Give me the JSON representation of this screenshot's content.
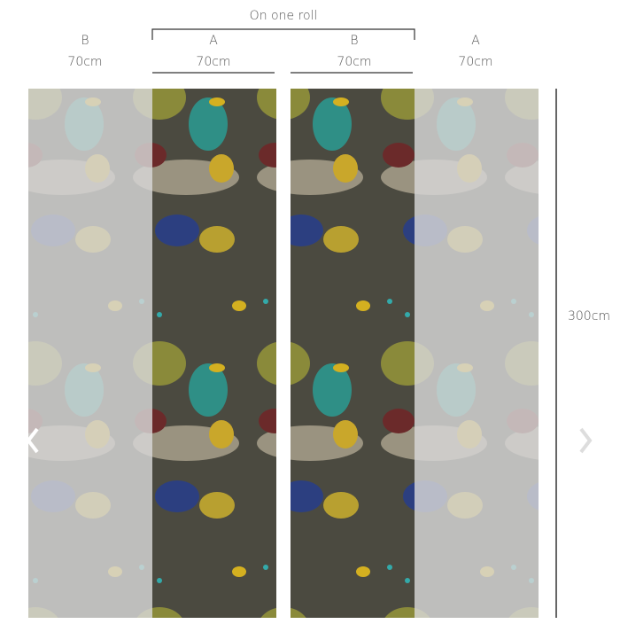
{
  "header": {
    "title": "On one roll"
  },
  "panels": [
    {
      "letter": "B",
      "width": "70cm"
    },
    {
      "letter": "A",
      "width": "70cm"
    },
    {
      "letter": "B",
      "width": "70cm"
    },
    {
      "letter": "A",
      "width": "70cm"
    }
  ],
  "height": "300cm"
}
